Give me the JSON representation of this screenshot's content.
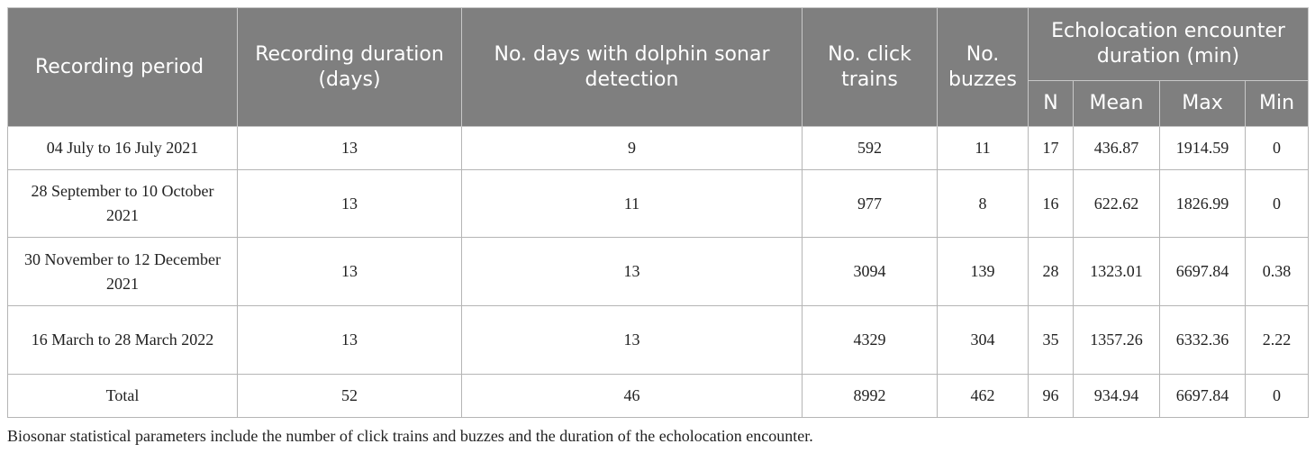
{
  "table": {
    "headers": {
      "period": "Recording period",
      "duration": "Recording duration (days)",
      "days_detect": "No. days with dolphin sonar detection",
      "click_trains": "No. click trains",
      "buzzes": "No. buzzes",
      "encounter_group": "Echolocation encounter duration (min)",
      "n": "N",
      "mean": "Mean",
      "max": "Max",
      "min": "Min"
    },
    "rows": [
      [
        "04 July to 16 July 2021",
        "13",
        "9",
        "592",
        "11",
        "17",
        "436.87",
        "1914.59",
        "0"
      ],
      [
        "28 September to 10 October 2021",
        "13",
        "11",
        "977",
        "8",
        "16",
        "622.62",
        "1826.99",
        "0"
      ],
      [
        "30 November to 12 December 2021",
        "13",
        "13",
        "3094",
        "139",
        "28",
        "1323.01",
        "6697.84",
        "0.38"
      ],
      [
        "16 March to 28 March 2022",
        "13",
        "13",
        "4329",
        "304",
        "35",
        "1357.26",
        "6332.36",
        "2.22"
      ],
      [
        "Total",
        "52",
        "46",
        "8992",
        "462",
        "96",
        "934.94",
        "6697.84",
        "0"
      ]
    ]
  },
  "footnote": "Biosonar statistical parameters include the number of click trains and buzzes and the duration of the echolocation encounter."
}
